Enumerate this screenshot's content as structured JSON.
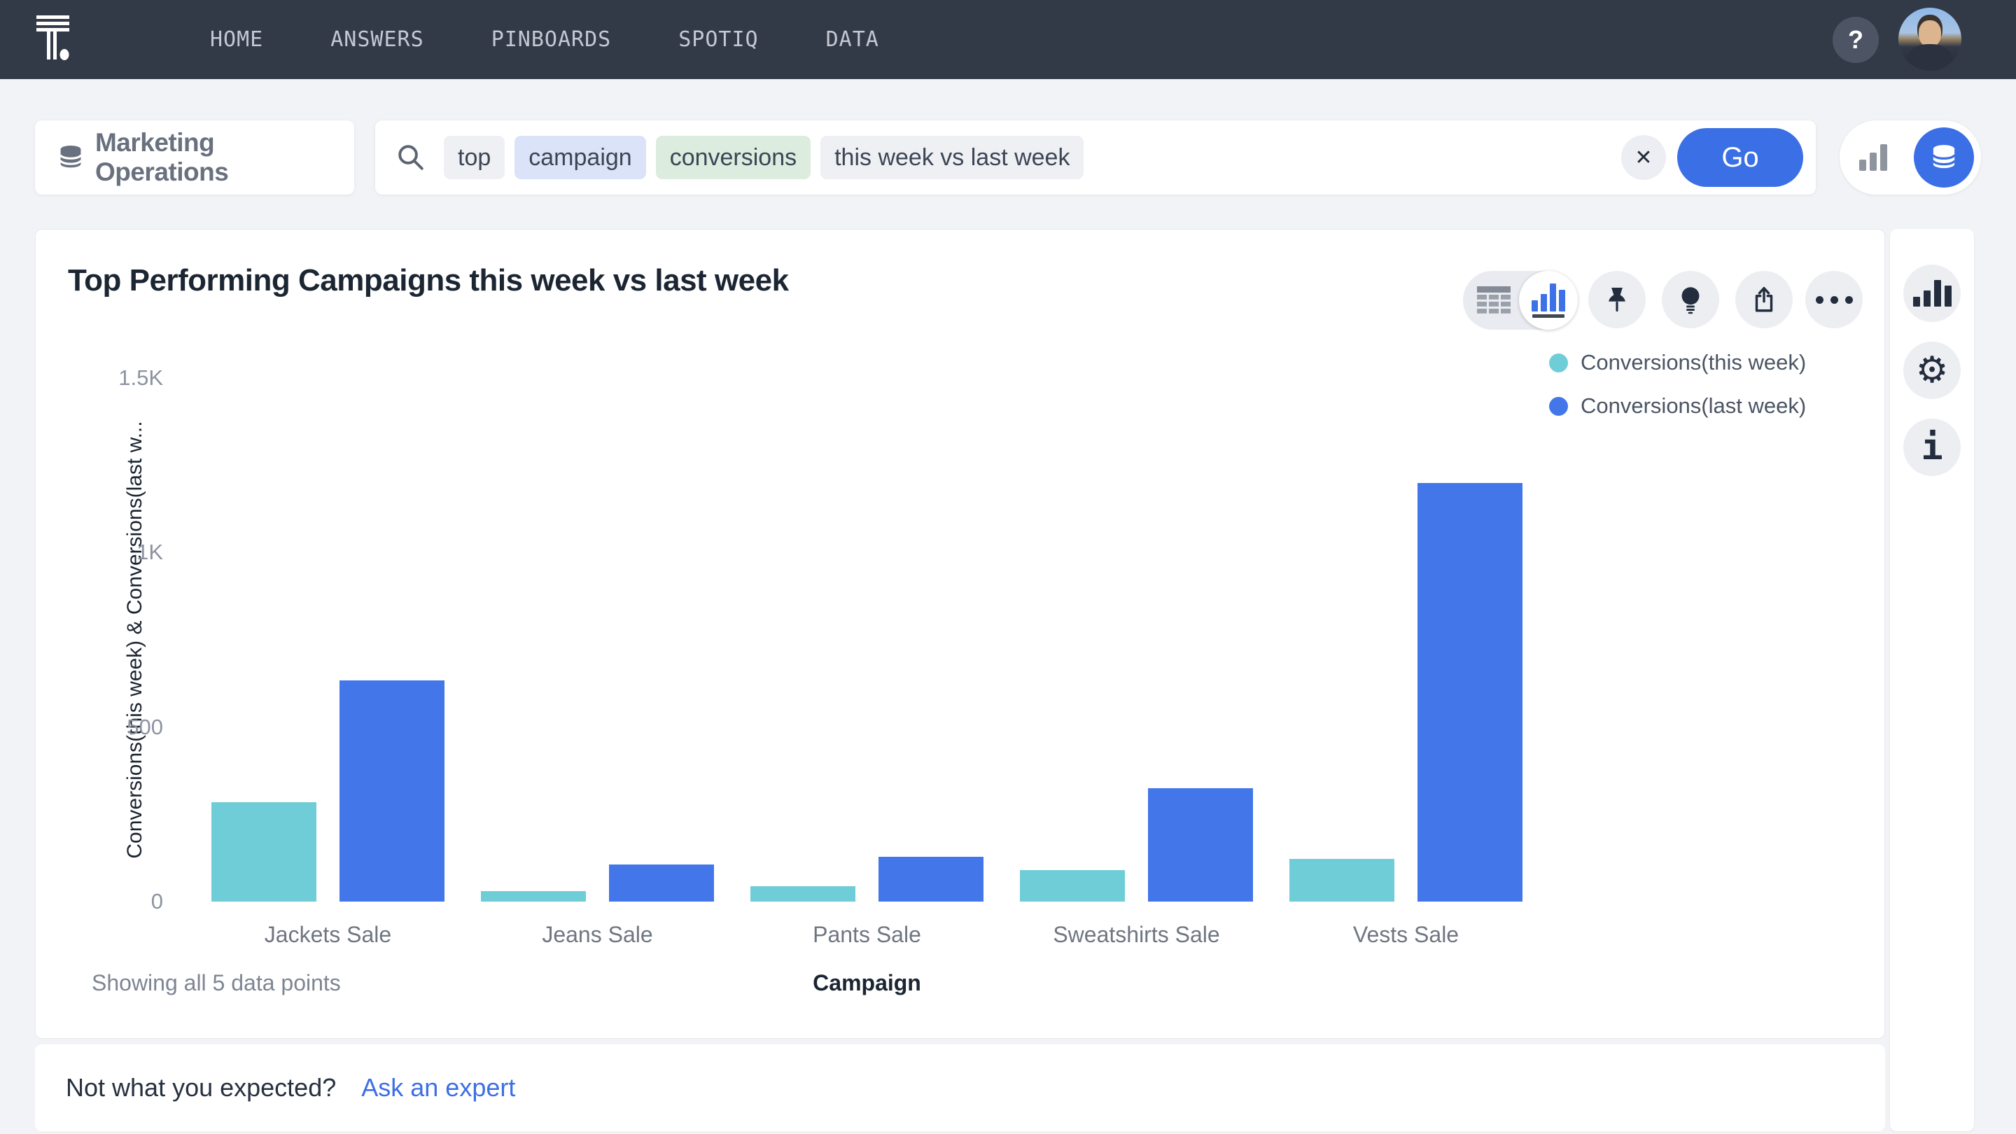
{
  "nav": {
    "items": [
      {
        "id": "home",
        "label": "HOME"
      },
      {
        "id": "answers",
        "label": "ANSWERS"
      },
      {
        "id": "pinboards",
        "label": "PINBOARDS"
      },
      {
        "id": "spotiq",
        "label": "SPOTIQ"
      },
      {
        "id": "data",
        "label": "DATA"
      }
    ],
    "help_label": "?"
  },
  "source_selector": {
    "label": "Marketing Operations"
  },
  "search": {
    "tokens": [
      {
        "text": "top",
        "bg": "#eef0f4"
      },
      {
        "text": "campaign",
        "bg": "#dbe3f8"
      },
      {
        "text": "conversions",
        "bg": "#dcecdf"
      },
      {
        "text": "this week vs last week",
        "bg": "#eef0f4"
      }
    ],
    "clear_label": "✕",
    "go_label": "Go"
  },
  "answer": {
    "title": "Top Performing Campaigns this week vs last week",
    "showing_text": "Showing all 5 data points"
  },
  "icons": {
    "gear": "⚙",
    "info": "i"
  },
  "colors": {
    "series_this_week": "#6fcdd8",
    "series_last_week": "#4377e9",
    "accent_blue": "#3b6fe6",
    "nav_bg": "#333a47"
  },
  "chart_data": {
    "type": "bar",
    "title": "Top Performing Campaigns this week vs last week",
    "categories": [
      "Jackets Sale",
      "Jeans Sale",
      "Pants Sale",
      "Sweatshirts Sale",
      "Vests Sale"
    ],
    "series": [
      {
        "name": "Conversions(this week)",
        "color": "#6fcdd8",
        "values": [
          285,
          30,
          44,
          91,
          123
        ]
      },
      {
        "name": "Conversions(last week)",
        "color": "#4377e9",
        "values": [
          633,
          107,
          129,
          325,
          1200
        ]
      }
    ],
    "xlabel": "Campaign",
    "ylabel": "Conversions(this week) & Conversions(last w...",
    "ylim": [
      0,
      1500
    ],
    "yticks": [
      {
        "value": 0,
        "label": "0"
      },
      {
        "value": 500,
        "label": "500"
      },
      {
        "value": 1000,
        "label": "1K"
      },
      {
        "value": 1500,
        "label": "1.5K"
      }
    ],
    "grid": false,
    "legend_position": "top-right"
  },
  "footer": {
    "question": "Not what you expected?",
    "link": "Ask an expert"
  }
}
